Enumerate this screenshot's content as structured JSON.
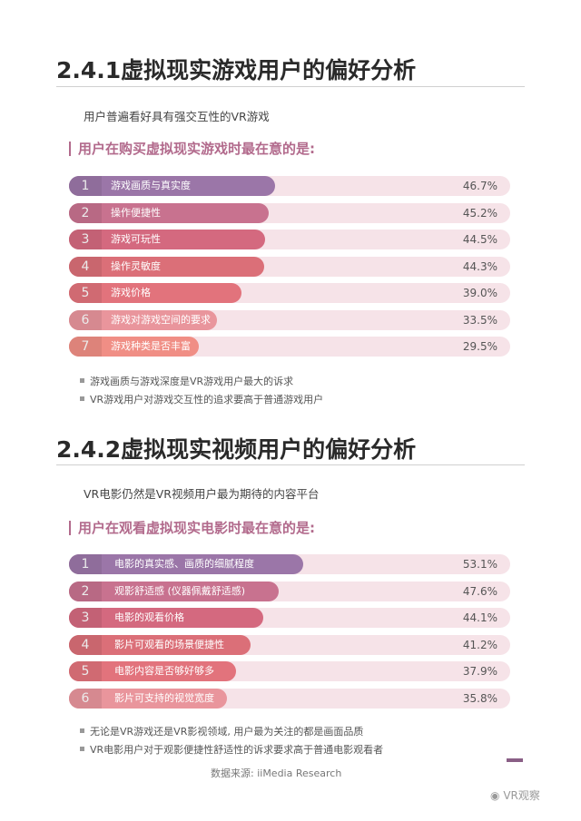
{
  "sections": [
    {
      "title": "2.4.1虚拟现实游戏用户的偏好分析",
      "subtitle": "用户普遍看好具有强交互性的VR游戏",
      "question": "用户在购买虚拟现实游戏时最在意的是:",
      "bullets": [
        "游戏画质与游戏深度是VR游戏用户最大的诉求",
        "VR游戏用户对游戏交互性的追求要高于普通游戏用户"
      ]
    },
    {
      "title": "2.4.2虚拟现实视频用户的偏好分析",
      "subtitle": "VR电影仍然是VR视频用户最为期待的内容平台",
      "question": "用户在观看虚拟现实电影时最在意的是:",
      "bullets": [
        "无论是VR游戏还是VR影视领域, 用户最为关注的都是画面品质",
        "VR电影用户对于观影便捷性舒适性的诉求要求高于普通电影观看者"
      ]
    }
  ],
  "chart_data": [
    {
      "type": "bar",
      "orientation": "horizontal",
      "ranks": [
        "1",
        "2",
        "3",
        "4",
        "5",
        "6",
        "7"
      ],
      "categories": [
        "游戏画质与真实度",
        "操作便捷性",
        "游戏可玩性",
        "操作灵敏度",
        "游戏价格",
        "游戏对游戏空间的要求",
        "游戏种类是否丰富"
      ],
      "values": [
        46.7,
        45.2,
        44.5,
        44.3,
        39.0,
        33.5,
        29.5
      ],
      "value_labels": [
        "46.7%",
        "45.2%",
        "44.5%",
        "44.3%",
        "39.0%",
        "33.5%",
        "29.5%"
      ],
      "unit": "%",
      "xlim": [
        0,
        100
      ],
      "colors": [
        "#9b76a8",
        "#c8728f",
        "#d4697f",
        "#db6f78",
        "#e2737c",
        "#e9959c",
        "#f08e85"
      ]
    },
    {
      "type": "bar",
      "orientation": "horizontal",
      "ranks": [
        "1",
        "2",
        "3",
        "4",
        "5",
        "6"
      ],
      "categories": [
        "电影的真实感、画质的细腻程度",
        "观影舒适感 (仪器佩戴舒适感)",
        "电影的观看价格",
        "影片可观看的场景便捷性",
        "电影内容是否够好够多",
        "影片可支持的视觉宽度"
      ],
      "values": [
        53.1,
        47.6,
        44.1,
        41.2,
        37.9,
        35.8
      ],
      "value_labels": [
        "53.1%",
        "47.6%",
        "44.1%",
        "41.2%",
        "37.9%",
        "35.8%"
      ],
      "unit": "%",
      "xlim": [
        0,
        100
      ],
      "colors": [
        "#9b76a8",
        "#c8728f",
        "#d4697f",
        "#db6f78",
        "#e2737c",
        "#e9959c"
      ]
    }
  ],
  "footer": {
    "source": "数据来源: iiMedia Research",
    "watermark": "VR观察"
  }
}
